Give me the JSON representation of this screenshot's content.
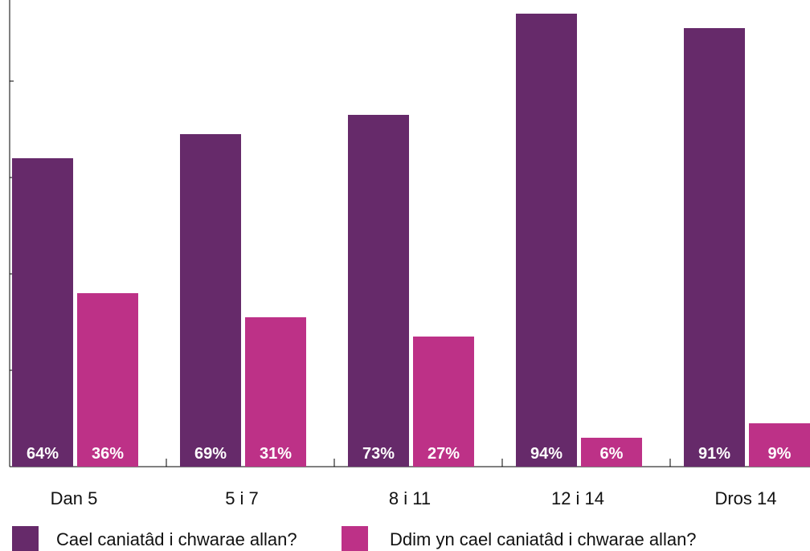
{
  "chart_data": {
    "type": "bar",
    "categories": [
      "Dan 5",
      "5 i 7",
      "8 i 11",
      "12 i 14",
      "Dros 14"
    ],
    "series": [
      {
        "name": "Cael caniatâd i chwarae allan?",
        "color": "#662a6a",
        "values": [
          64,
          69,
          73,
          94,
          91
        ],
        "labels": [
          "64%",
          "69%",
          "73%",
          "94%",
          "91%"
        ]
      },
      {
        "name": "Ddim yn cael caniatâd i chwarae allan?",
        "color": "#bd3187",
        "values": [
          36,
          31,
          27,
          6,
          9
        ],
        "labels": [
          "36%",
          "31%",
          "27%",
          "6%",
          "9%"
        ]
      }
    ],
    "ylim": [
      0,
      100
    ],
    "grid": false,
    "legend_position": "bottom"
  }
}
